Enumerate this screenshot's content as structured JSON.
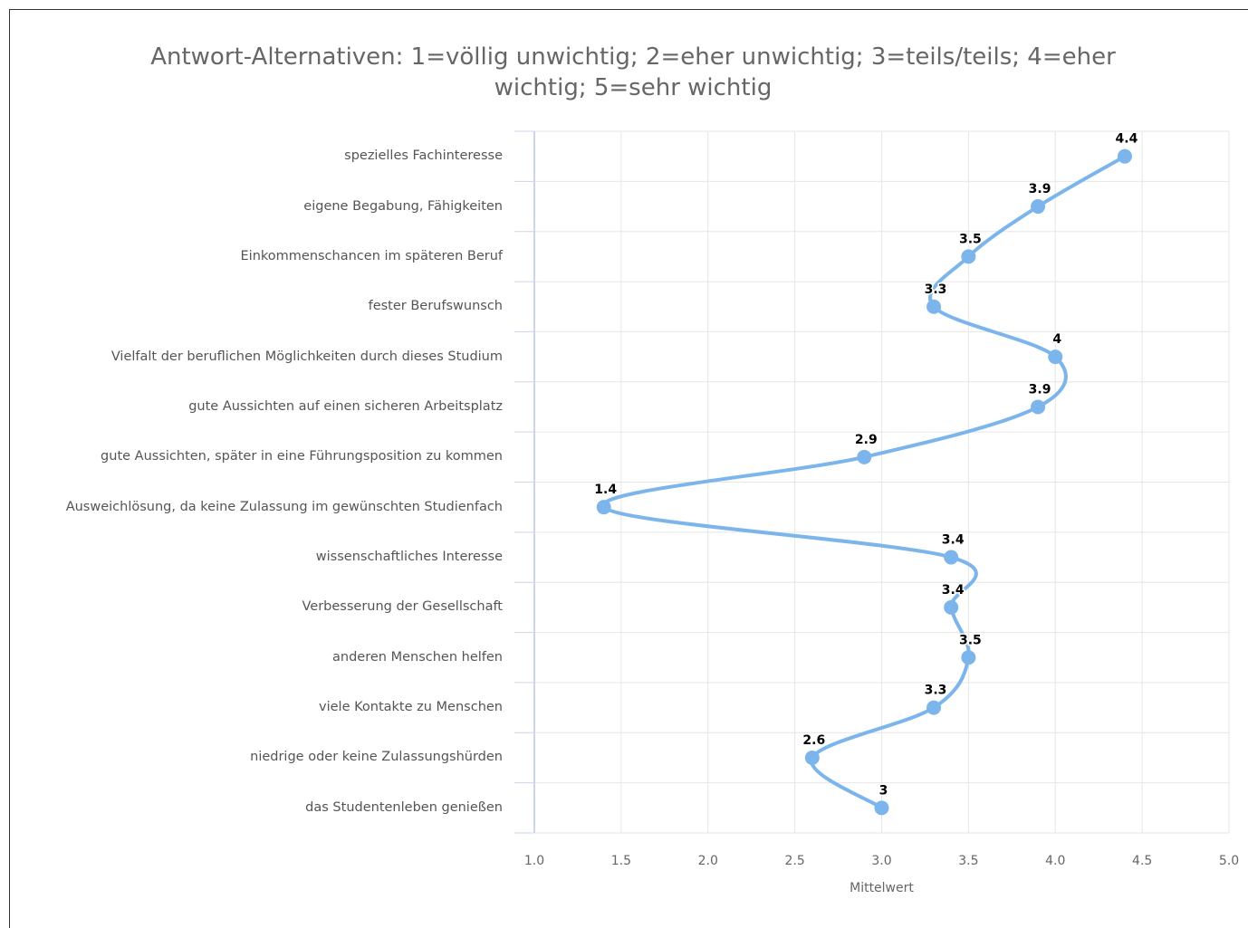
{
  "chart_data": {
    "type": "line",
    "title": "Antwort-Alternativen: 1=völlig unwichtig; 2=eher unwichtig; 3=teils/teils; 4=eher wichtig; 5=sehr wichtig",
    "x_label": "Mittelwert",
    "categories": [
      "spezielles Fachinteresse",
      "eigene Begabung, Fähigkeiten",
      "Einkommenschancen im späteren Beruf",
      "fester Berufswunsch",
      "Vielfalt der beruflichen Möglichkeiten durch dieses Studium",
      "gute Aussichten auf einen sicheren Arbeitsplatz",
      "gute Aussichten, später in eine Führungsposition zu kommen",
      "Ausweichlösung, da keine Zulassung im gewünschten Studienfach",
      "wissenschaftliches Interesse",
      "Verbesserung der Gesellschaft",
      "anderen Menschen helfen",
      "viele Kontakte zu Menschen",
      "niedrige oder keine Zulassungshürden",
      "das Studentenleben genießen"
    ],
    "values": [
      4.4,
      3.9,
      3.5,
      3.3,
      4,
      3.9,
      2.9,
      1.4,
      3.4,
      3.4,
      3.5,
      3.3,
      2.6,
      3
    ],
    "color": "#7cb5ec",
    "xlim": [
      1,
      5
    ],
    "xticks": [
      {
        "value": 1,
        "label": "1.0"
      },
      1.5,
      {
        "value": 2,
        "label": "2.0"
      },
      2.5,
      {
        "value": 3,
        "label": "3.0"
      },
      3.5,
      {
        "value": 4,
        "label": "4.0"
      },
      4.5,
      {
        "value": 5,
        "label": "5.0"
      }
    ],
    "grid": true
  }
}
